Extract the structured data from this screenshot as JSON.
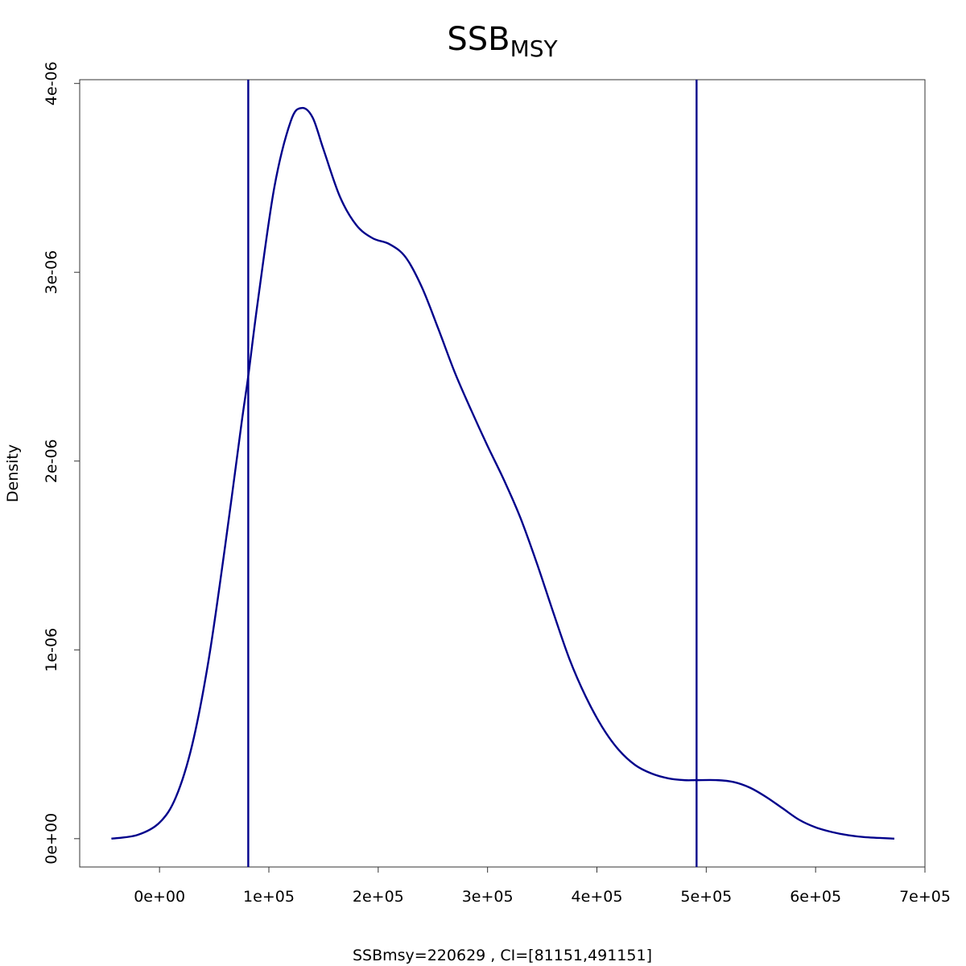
{
  "chart_data": {
    "type": "line",
    "title": "SSB",
    "title_subscript": "MSY",
    "xlabel": "SSBmsy=220629 , CI=[81151,491151]",
    "ylabel": "Density",
    "xlim": [
      -73000,
      700000
    ],
    "ylim": [
      -1.5e-07,
      4.02e-06
    ],
    "x_ticks": [
      {
        "value": 0,
        "label": "0e+00"
      },
      {
        "value": 100000,
        "label": "1e+05"
      },
      {
        "value": 200000,
        "label": "2e+05"
      },
      {
        "value": 300000,
        "label": "3e+05"
      },
      {
        "value": 400000,
        "label": "4e+05"
      },
      {
        "value": 500000,
        "label": "5e+05"
      },
      {
        "value": 600000,
        "label": "6e+05"
      },
      {
        "value": 700000,
        "label": "7e+05"
      }
    ],
    "y_ticks": [
      {
        "value": 0,
        "label": "0e+00"
      },
      {
        "value": 1e-06,
        "label": "1e-06"
      },
      {
        "value": 2e-06,
        "label": "2e-06"
      },
      {
        "value": 3e-06,
        "label": "3e-06"
      },
      {
        "value": 4e-06,
        "label": "4e-06"
      }
    ],
    "grid": false,
    "line_color": "#00008b",
    "vlines": [
      81151,
      491151
    ],
    "series": [
      {
        "x": [
          -44000,
          -20000,
          0,
          15000,
          30000,
          45000,
          60000,
          75000,
          81151,
          90000,
          105000,
          120000,
          130000,
          140000,
          150000,
          165000,
          180000,
          195000,
          210000,
          225000,
          240000,
          255000,
          270000,
          285000,
          300000,
          315000,
          330000,
          345000,
          360000,
          375000,
          390000,
          405000,
          420000,
          435000,
          450000,
          465000,
          480000,
          491151,
          510000,
          525000,
          540000,
          555000,
          570000,
          585000,
          600000,
          615000,
          630000,
          645000,
          672000
        ],
        "y": [
          0.0,
          2e-08,
          8.5e-08,
          2.2e-07,
          5e-07,
          9.5e-07,
          1.55e-06,
          2.2e-06,
          2.45e-06,
          2.85e-06,
          3.45e-06,
          3.8e-06,
          3.87e-06,
          3.82e-06,
          3.65e-06,
          3.4e-06,
          3.25e-06,
          3.18e-06,
          3.15e-06,
          3.08e-06,
          2.92e-06,
          2.7e-06,
          2.47e-06,
          2.27e-06,
          2.08e-06,
          1.9e-06,
          1.7e-06,
          1.46e-06,
          1.2e-06,
          9.5e-07,
          7.5e-07,
          5.9e-07,
          4.7e-07,
          3.9e-07,
          3.45e-07,
          3.2e-07,
          3.1e-07,
          3.1e-07,
          3.1e-07,
          3e-07,
          2.7e-07,
          2.2e-07,
          1.6e-07,
          1e-07,
          6e-08,
          3.5e-08,
          1.8e-08,
          8e-09,
          0.0
        ]
      }
    ]
  }
}
